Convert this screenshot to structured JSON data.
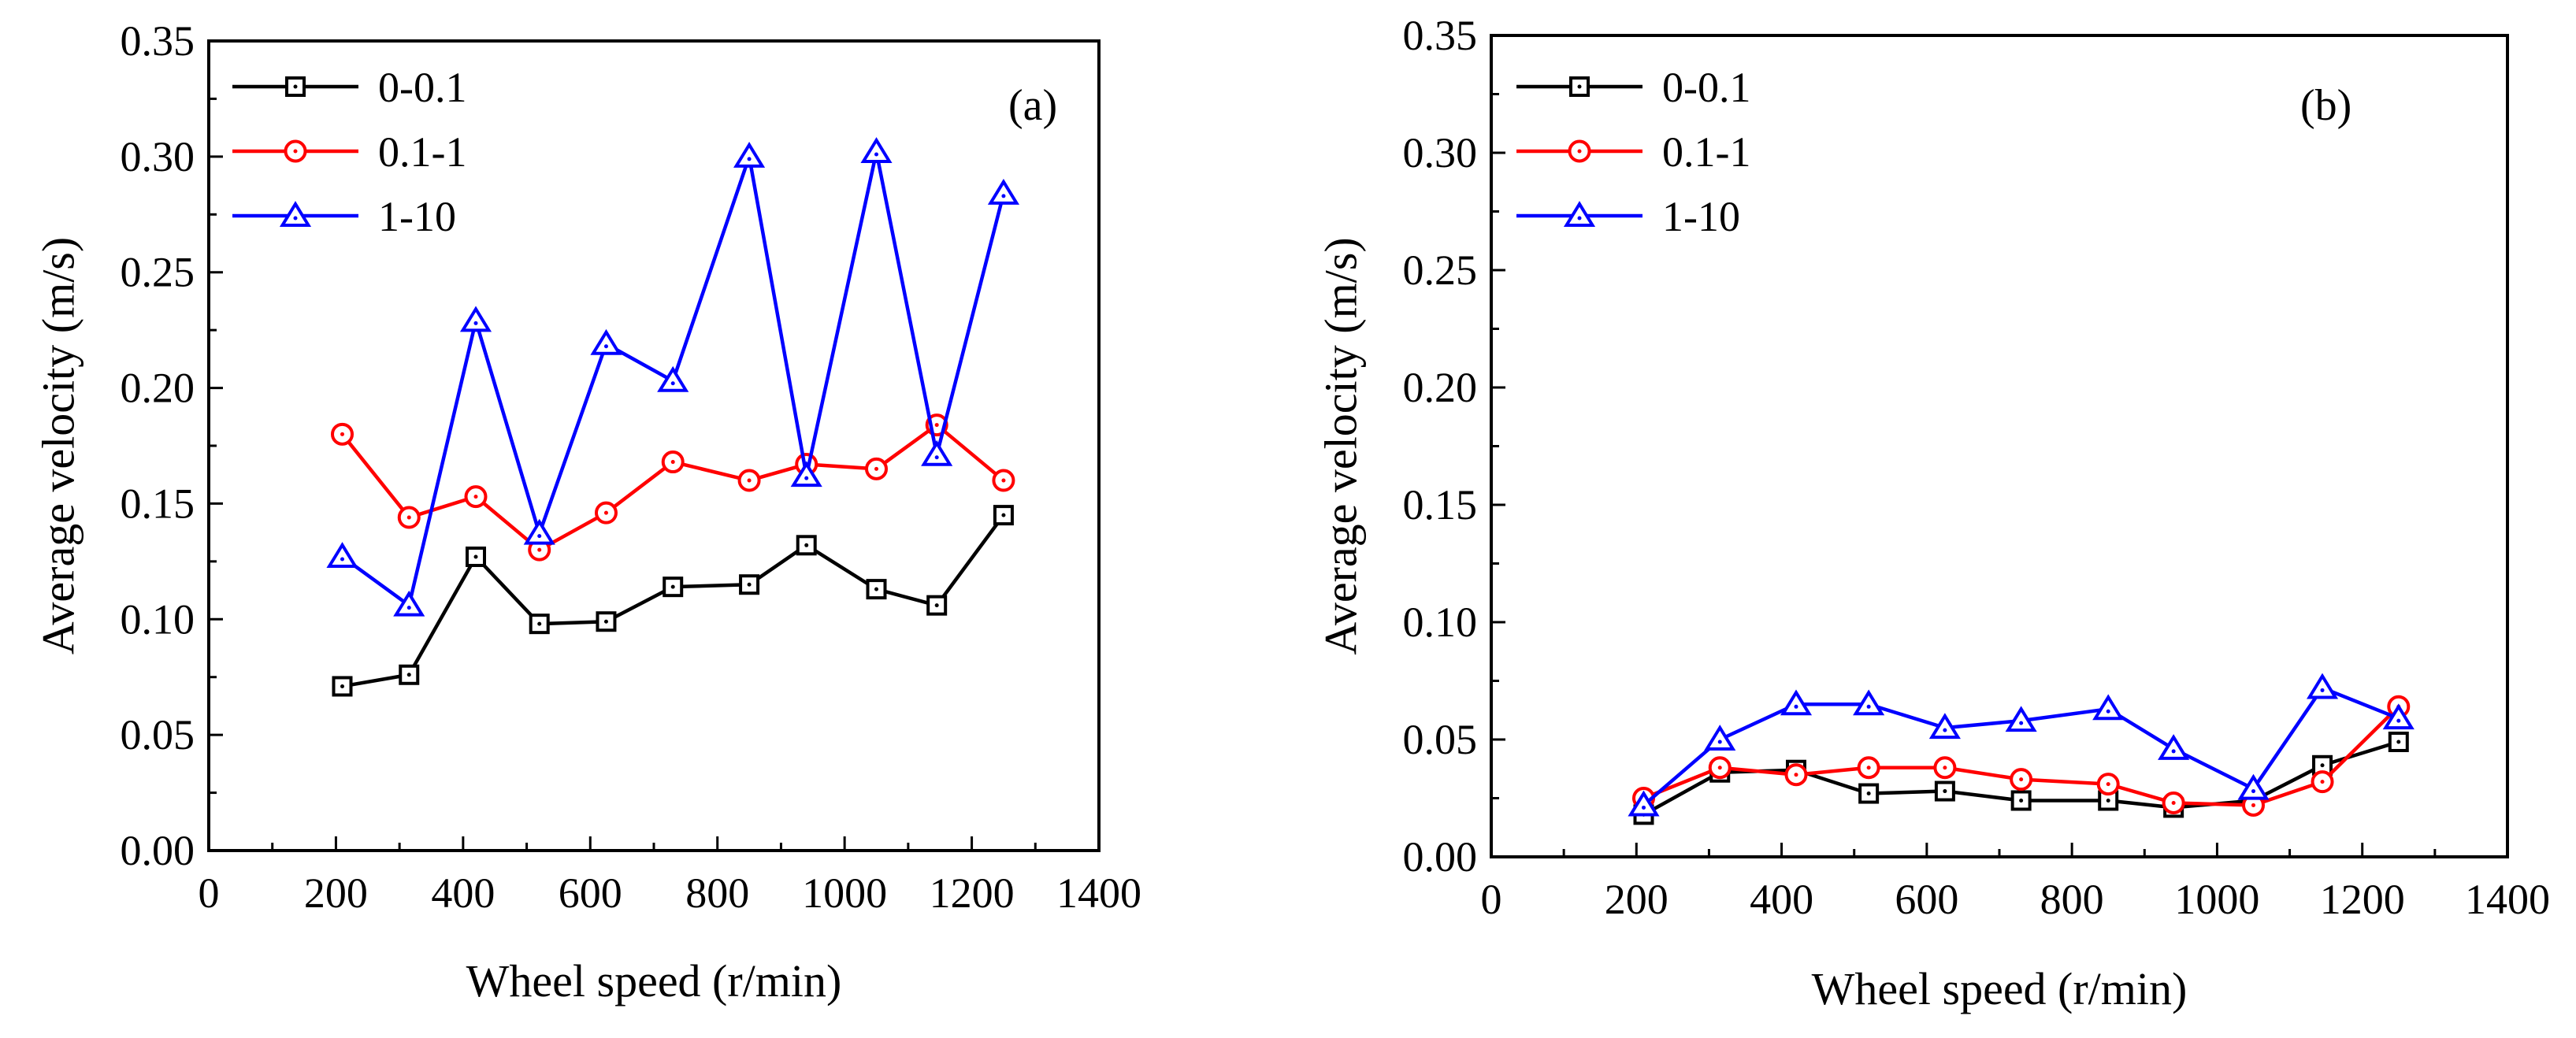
{
  "chart_data": [
    {
      "type": "line",
      "panel_label": "(a)",
      "xlabel": "Wheel speed (r/min)",
      "ylabel": "Average velocity (m/s)",
      "xlim": [
        0,
        1400
      ],
      "ylim": [
        0,
        0.35
      ],
      "xticks": [
        "0",
        "200",
        "400",
        "600",
        "800",
        "1000",
        "1200",
        "1400"
      ],
      "yticks": [
        "0.00",
        "0.05",
        "0.10",
        "0.15",
        "0.20",
        "0.25",
        "0.30",
        "0.35"
      ],
      "grid": false,
      "legend_position": "top-left",
      "x": [
        210,
        315,
        420,
        520,
        625,
        730,
        850,
        940,
        1050,
        1145,
        1250
      ],
      "series": [
        {
          "name": "0-0.1",
          "color": "#000000",
          "marker": "square",
          "values": [
            0.071,
            0.076,
            0.127,
            0.098,
            0.099,
            0.114,
            0.115,
            0.132,
            0.113,
            0.106,
            0.145
          ]
        },
        {
          "name": "0.1-1",
          "color": "#ff0000",
          "marker": "circle",
          "values": [
            0.18,
            0.144,
            0.153,
            0.13,
            0.146,
            0.168,
            0.16,
            0.167,
            0.165,
            0.184,
            0.16
          ]
        },
        {
          "name": "1-10",
          "color": "#0000ff",
          "marker": "triangle",
          "values": [
            0.127,
            0.106,
            0.229,
            0.137,
            0.219,
            0.203,
            0.3,
            0.162,
            0.302,
            0.171,
            0.284
          ]
        }
      ]
    },
    {
      "type": "line",
      "panel_label": "(b)",
      "xlabel": "Wheel speed (r/min)",
      "ylabel": "Average velocity (m/s)",
      "xlim": [
        0,
        1400
      ],
      "ylim": [
        0,
        0.35
      ],
      "xticks": [
        "0",
        "200",
        "400",
        "600",
        "800",
        "1000",
        "1200",
        "1400"
      ],
      "yticks": [
        "0.00",
        "0.05",
        "0.10",
        "0.15",
        "0.20",
        "0.25",
        "0.30",
        "0.35"
      ],
      "grid": false,
      "legend_position": "top-left",
      "x": [
        210,
        315,
        420,
        520,
        625,
        730,
        850,
        940,
        1050,
        1145,
        1250
      ],
      "series": [
        {
          "name": "0-0.1",
          "color": "#000000",
          "marker": "square",
          "values": [
            0.018,
            0.036,
            0.037,
            0.027,
            0.028,
            0.024,
            0.024,
            0.021,
            0.024,
            0.039,
            0.049
          ]
        },
        {
          "name": "0.1-1",
          "color": "#ff0000",
          "marker": "circle",
          "values": [
            0.025,
            0.038,
            0.035,
            0.038,
            0.038,
            0.033,
            0.031,
            0.023,
            0.022,
            0.032,
            0.064
          ]
        },
        {
          "name": "1-10",
          "color": "#0000ff",
          "marker": "triangle",
          "values": [
            0.022,
            0.05,
            0.065,
            0.065,
            0.055,
            0.058,
            0.063,
            0.046,
            0.029,
            0.072,
            0.059
          ]
        }
      ]
    }
  ]
}
